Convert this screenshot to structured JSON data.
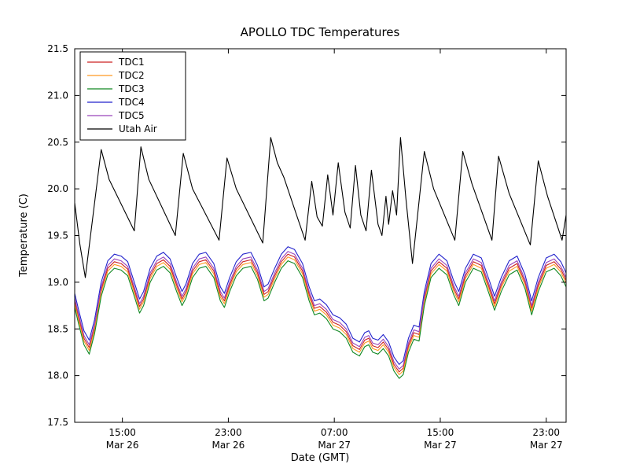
{
  "chart_data": {
    "type": "line",
    "title": "APOLLO TDC Temperatures",
    "xlabel": "Date (GMT)",
    "ylabel": "Temperature (C)",
    "x_unit": "hours since Mar 26 00:00 GMT",
    "xlim": [
      11.4,
      48.5
    ],
    "ylim": [
      17.5,
      21.5
    ],
    "yticks": [
      17.5,
      18.0,
      18.5,
      19.0,
      19.5,
      20.0,
      20.5,
      21.0,
      21.5
    ],
    "xticks": [
      {
        "value": 15,
        "time": "15:00",
        "date": "Mar 26"
      },
      {
        "value": 23,
        "time": "23:00",
        "date": "Mar 26"
      },
      {
        "value": 31,
        "time": "07:00",
        "date": "Mar 27"
      },
      {
        "value": 39,
        "time": "15:00",
        "date": "Mar 27"
      },
      {
        "value": 47,
        "time": "23:00",
        "date": "Mar 27"
      }
    ],
    "grid": false,
    "legend_position": "upper left",
    "series": [
      {
        "name": "TDC1",
        "color": "#cc2222",
        "base": "tdc",
        "offset": 0.02
      },
      {
        "name": "TDC2",
        "color": "#ff9922",
        "base": "tdc",
        "offset": -0.01
      },
      {
        "name": "TDC3",
        "color": "#118822",
        "base": "tdc",
        "offset": -0.05
      },
      {
        "name": "TDC4",
        "color": "#2222cc",
        "base": "tdc",
        "offset": 0.1
      },
      {
        "name": "TDC5",
        "color": "#9944bb",
        "base": "tdc",
        "offset": 0.05
      },
      {
        "name": "Utah Air",
        "color": "#000000",
        "base": "utah",
        "offset": 0
      }
    ],
    "tdc_base_points": [
      [
        11.4,
        18.78
      ],
      [
        11.7,
        18.6
      ],
      [
        12.1,
        18.38
      ],
      [
        12.5,
        18.28
      ],
      [
        12.9,
        18.5
      ],
      [
        13.4,
        18.9
      ],
      [
        13.9,
        19.13
      ],
      [
        14.4,
        19.2
      ],
      [
        14.9,
        19.18
      ],
      [
        15.4,
        19.12
      ],
      [
        15.9,
        18.9
      ],
      [
        16.3,
        18.72
      ],
      [
        16.6,
        18.8
      ],
      [
        17.1,
        19.05
      ],
      [
        17.6,
        19.18
      ],
      [
        18.1,
        19.22
      ],
      [
        18.6,
        19.15
      ],
      [
        19.1,
        18.95
      ],
      [
        19.5,
        18.8
      ],
      [
        19.8,
        18.88
      ],
      [
        20.3,
        19.1
      ],
      [
        20.8,
        19.2
      ],
      [
        21.3,
        19.22
      ],
      [
        21.9,
        19.1
      ],
      [
        22.4,
        18.85
      ],
      [
        22.7,
        18.78
      ],
      [
        23.1,
        18.95
      ],
      [
        23.6,
        19.12
      ],
      [
        24.1,
        19.2
      ],
      [
        24.7,
        19.22
      ],
      [
        25.2,
        19.08
      ],
      [
        25.7,
        18.85
      ],
      [
        26.0,
        18.88
      ],
      [
        26.5,
        19.05
      ],
      [
        27.0,
        19.2
      ],
      [
        27.5,
        19.28
      ],
      [
        28.0,
        19.25
      ],
      [
        28.6,
        19.1
      ],
      [
        29.1,
        18.85
      ],
      [
        29.5,
        18.7
      ],
      [
        29.9,
        18.72
      ],
      [
        30.4,
        18.66
      ],
      [
        30.9,
        18.55
      ],
      [
        31.4,
        18.52
      ],
      [
        31.9,
        18.45
      ],
      [
        32.4,
        18.3
      ],
      [
        32.9,
        18.26
      ],
      [
        33.3,
        18.36
      ],
      [
        33.6,
        18.38
      ],
      [
        33.9,
        18.3
      ],
      [
        34.3,
        18.28
      ],
      [
        34.7,
        18.34
      ],
      [
        35.1,
        18.26
      ],
      [
        35.5,
        18.1
      ],
      [
        35.9,
        18.02
      ],
      [
        36.2,
        18.06
      ],
      [
        36.6,
        18.3
      ],
      [
        37.0,
        18.44
      ],
      [
        37.4,
        18.42
      ],
      [
        37.8,
        18.8
      ],
      [
        38.3,
        19.1
      ],
      [
        38.9,
        19.2
      ],
      [
        39.5,
        19.13
      ],
      [
        40.0,
        18.92
      ],
      [
        40.4,
        18.8
      ],
      [
        40.9,
        19.05
      ],
      [
        41.5,
        19.2
      ],
      [
        42.1,
        19.16
      ],
      [
        42.7,
        18.92
      ],
      [
        43.1,
        18.75
      ],
      [
        43.6,
        18.95
      ],
      [
        44.2,
        19.13
      ],
      [
        44.8,
        19.18
      ],
      [
        45.4,
        18.98
      ],
      [
        45.9,
        18.7
      ],
      [
        46.4,
        18.95
      ],
      [
        47.0,
        19.16
      ],
      [
        47.6,
        19.2
      ],
      [
        48.1,
        19.12
      ],
      [
        48.5,
        19.0
      ]
    ],
    "utah_points": [
      [
        11.4,
        19.85
      ],
      [
        11.8,
        19.4
      ],
      [
        12.2,
        19.05
      ],
      [
        13.4,
        20.42
      ],
      [
        14.0,
        20.1
      ],
      [
        15.9,
        19.55
      ],
      [
        16.4,
        20.45
      ],
      [
        17.0,
        20.1
      ],
      [
        19.0,
        19.5
      ],
      [
        19.6,
        20.38
      ],
      [
        20.3,
        20.0
      ],
      [
        22.3,
        19.45
      ],
      [
        22.9,
        20.33
      ],
      [
        23.6,
        20.0
      ],
      [
        25.6,
        19.42
      ],
      [
        26.2,
        20.55
      ],
      [
        26.7,
        20.28
      ],
      [
        27.2,
        20.12
      ],
      [
        28.2,
        19.7
      ],
      [
        28.8,
        19.45
      ],
      [
        29.3,
        20.08
      ],
      [
        29.7,
        19.7
      ],
      [
        30.1,
        19.6
      ],
      [
        30.5,
        20.15
      ],
      [
        30.9,
        19.72
      ],
      [
        31.3,
        20.28
      ],
      [
        31.8,
        19.75
      ],
      [
        32.2,
        19.58
      ],
      [
        32.6,
        20.25
      ],
      [
        33.0,
        19.72
      ],
      [
        33.4,
        19.55
      ],
      [
        33.8,
        20.2
      ],
      [
        34.3,
        19.62
      ],
      [
        34.6,
        19.5
      ],
      [
        34.9,
        19.92
      ],
      [
        35.1,
        19.62
      ],
      [
        35.4,
        19.98
      ],
      [
        35.7,
        19.72
      ],
      [
        36.0,
        20.55
      ],
      [
        36.4,
        19.9
      ],
      [
        36.9,
        19.2
      ],
      [
        37.8,
        20.4
      ],
      [
        38.5,
        20.0
      ],
      [
        40.1,
        19.45
      ],
      [
        40.7,
        20.4
      ],
      [
        41.4,
        20.05
      ],
      [
        42.9,
        19.45
      ],
      [
        43.4,
        20.35
      ],
      [
        44.2,
        19.95
      ],
      [
        45.8,
        19.4
      ],
      [
        46.4,
        20.3
      ],
      [
        47.1,
        19.92
      ],
      [
        48.2,
        19.45
      ],
      [
        48.5,
        19.72
      ]
    ]
  }
}
